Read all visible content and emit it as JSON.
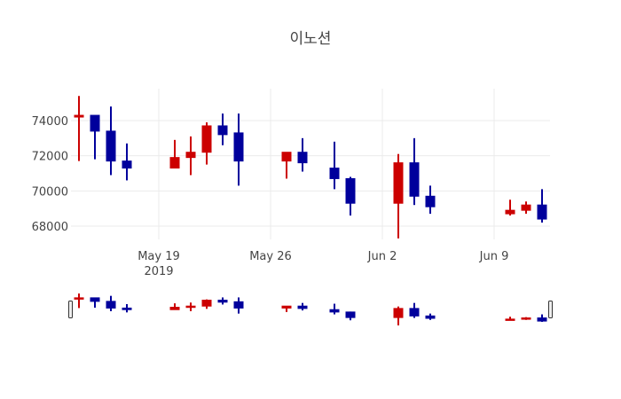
{
  "chart_data": {
    "type": "candlestick",
    "title": "이노션",
    "xlabel": "",
    "ylabel": "",
    "x_ticks": [
      {
        "date": "2019-05-19",
        "label": "May 19",
        "sublabel": "2019"
      },
      {
        "date": "2019-05-26",
        "label": "May 26",
        "sublabel": ""
      },
      {
        "date": "2019-06-02",
        "label": "Jun 2",
        "sublabel": ""
      },
      {
        "date": "2019-06-09",
        "label": "Jun 9",
        "sublabel": ""
      }
    ],
    "y_ticks": [
      68000,
      70000,
      72000,
      74000
    ],
    "ylim": [
      67000,
      75800
    ],
    "xlim": [
      "2019-05-13",
      "2019-06-13"
    ],
    "grid": true,
    "legend": false,
    "rangeslider": true,
    "increasing_color": "#cc0000",
    "decreasing_color": "#00009c",
    "series": [
      {
        "date": "2019-05-14",
        "open": 74200,
        "high": 75400,
        "low": 71700,
        "close": 74300
      },
      {
        "date": "2019-05-15",
        "open": 74300,
        "high": 74300,
        "low": 71800,
        "close": 73400
      },
      {
        "date": "2019-05-16",
        "open": 73400,
        "high": 74800,
        "low": 70900,
        "close": 71700
      },
      {
        "date": "2019-05-17",
        "open": 71700,
        "high": 72700,
        "low": 70600,
        "close": 71300
      },
      {
        "date": "2019-05-20",
        "open": 71300,
        "high": 72900,
        "low": 71300,
        "close": 71900
      },
      {
        "date": "2019-05-21",
        "open": 71900,
        "high": 73100,
        "low": 70900,
        "close": 72200
      },
      {
        "date": "2019-05-22",
        "open": 72200,
        "high": 73900,
        "low": 71500,
        "close": 73700
      },
      {
        "date": "2019-05-23",
        "open": 73700,
        "high": 74400,
        "low": 72600,
        "close": 73200
      },
      {
        "date": "2019-05-24",
        "open": 73300,
        "high": 74400,
        "low": 70300,
        "close": 71700
      },
      {
        "date": "2019-05-27",
        "open": 71700,
        "high": 72200,
        "low": 70700,
        "close": 72200
      },
      {
        "date": "2019-05-28",
        "open": 72200,
        "high": 73000,
        "low": 71100,
        "close": 71600
      },
      {
        "date": "2019-05-30",
        "open": 71300,
        "high": 72800,
        "low": 70100,
        "close": 70700
      },
      {
        "date": "2019-05-31",
        "open": 70700,
        "high": 70800,
        "low": 68600,
        "close": 69300
      },
      {
        "date": "2019-06-03",
        "open": 69300,
        "high": 72100,
        "low": 67300,
        "close": 71600
      },
      {
        "date": "2019-06-04",
        "open": 71600,
        "high": 73000,
        "low": 69200,
        "close": 69700
      },
      {
        "date": "2019-06-05",
        "open": 69700,
        "high": 70300,
        "low": 68700,
        "close": 69100
      },
      {
        "date": "2019-06-10",
        "open": 68700,
        "high": 69500,
        "low": 68600,
        "close": 68900
      },
      {
        "date": "2019-06-11",
        "open": 68900,
        "high": 69400,
        "low": 68700,
        "close": 69200
      },
      {
        "date": "2019-06-12",
        "open": 69200,
        "high": 70100,
        "low": 68200,
        "close": 68400
      }
    ]
  }
}
